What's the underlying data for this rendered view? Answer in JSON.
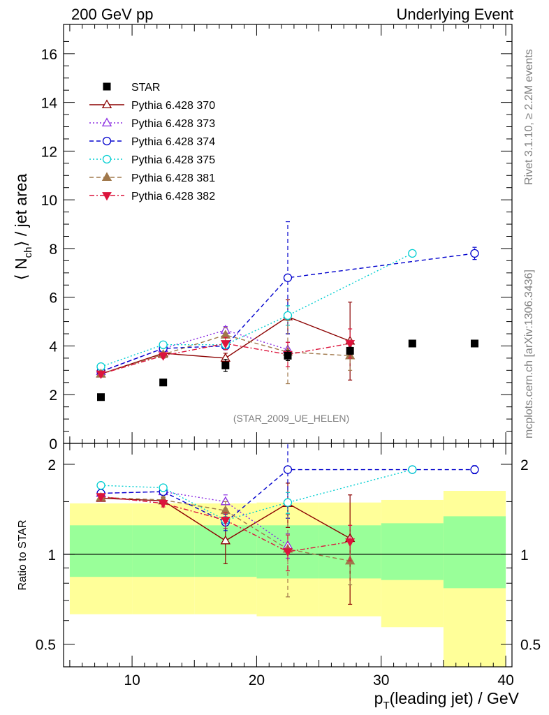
{
  "header": {
    "left": "200 GeV pp",
    "right": "Underlying Event"
  },
  "side_labels": {
    "rivet": "Rivet 3.1.10, ≥ 2.2M events",
    "mcplots": "mcplots.cern.ch [arXiv:1306.3436]"
  },
  "analysis_tag": "(STAR_2009_UE_HELEN)",
  "chart_data": [
    {
      "type": "scatter",
      "ylabel_prefix": "⟨ N",
      "ylabel_sub": "ch",
      "ylabel_suffix": "⟩ / jet area",
      "xlim": [
        4.5,
        40.5
      ],
      "ylim": [
        0,
        17.2
      ],
      "yticks": [
        0,
        2,
        4,
        6,
        8,
        10,
        12,
        14,
        16
      ],
      "legend_position": "top-left",
      "series": [
        {
          "name": "STAR",
          "marker": "square-filled",
          "color": "#000000",
          "line": "none",
          "x": [
            7.5,
            12.5,
            17.5,
            22.5,
            27.5,
            32.5,
            37.5
          ],
          "y": [
            1.9,
            2.5,
            3.2,
            3.6,
            3.8,
            4.1,
            4.1
          ],
          "yerr": [
            0.05,
            0.05,
            0.25,
            0.2,
            0.15,
            0.05,
            0.05
          ]
        },
        {
          "name": "Pythia 6.428 370",
          "marker": "triangle-open",
          "color": "#8b0000",
          "line": "solid",
          "x": [
            7.5,
            12.5,
            17.5,
            22.5,
            27.5
          ],
          "y": [
            2.85,
            3.7,
            3.5,
            5.2,
            4.2
          ],
          "yerr": [
            0.1,
            0.1,
            0.2,
            0.7,
            1.6
          ]
        },
        {
          "name": "Pythia 6.428 373",
          "marker": "triangle-open",
          "color": "#8a2be2",
          "line": "dotted",
          "x": [
            7.5,
            12.5,
            17.5,
            22.5
          ],
          "y": [
            2.95,
            3.9,
            4.65,
            3.85
          ],
          "yerr": [
            0.1,
            0.1,
            0.15,
            0.3
          ]
        },
        {
          "name": "Pythia 6.428 374",
          "marker": "circle-open",
          "color": "#0000cd",
          "line": "dashed",
          "x": [
            7.5,
            12.5,
            17.5,
            22.5,
            37.5
          ],
          "y": [
            2.95,
            3.9,
            4.0,
            6.8,
            7.8
          ],
          "yerr": [
            0.1,
            0.1,
            0.15,
            2.3,
            0.25
          ]
        },
        {
          "name": "Pythia 6.428 375",
          "marker": "circle-open",
          "color": "#00ced1",
          "line": "dotted",
          "x": [
            7.5,
            12.5,
            17.5,
            22.5,
            32.5
          ],
          "y": [
            3.15,
            4.05,
            4.05,
            5.25,
            7.8
          ],
          "yerr": [
            0.1,
            0.1,
            0.15,
            0.4,
            0.1
          ]
        },
        {
          "name": "Pythia 6.428 381",
          "marker": "triangle-filled",
          "color": "#a0784b",
          "line": "dashed",
          "x": [
            7.5,
            12.5,
            17.5,
            22.5,
            27.5
          ],
          "y": [
            2.85,
            3.65,
            4.45,
            3.75,
            3.6
          ],
          "yerr": [
            0.1,
            0.1,
            0.3,
            1.3,
            0.6
          ]
        },
        {
          "name": "Pythia 6.428 382",
          "marker": "triangle-down-filled",
          "color": "#dc143c",
          "line": "dashdot",
          "x": [
            7.5,
            12.5,
            17.5,
            22.5,
            27.5
          ],
          "y": [
            2.85,
            3.6,
            4.1,
            3.65,
            4.1
          ],
          "yerr": [
            0.1,
            0.1,
            0.25,
            0.5,
            0.6
          ]
        }
      ]
    },
    {
      "type": "scatter",
      "ylabel": "Ratio to STAR",
      "xlabel_prefix": "p",
      "xlabel_sub": "T",
      "xlabel_suffix": "(leading jet) / GeV",
      "xlim": [
        4.5,
        40.5
      ],
      "ylim": [
        0.42,
        2.35
      ],
      "yscale": "log",
      "yticks": [
        0.5,
        1,
        2
      ],
      "xticks": [
        10,
        20,
        30,
        40
      ],
      "reference_line": 1,
      "bands": [
        {
          "x0": 5,
          "x1": 10,
          "y1_low": 0.84,
          "y1_high": 1.25,
          "y2_low": 0.63,
          "y2_high": 1.48
        },
        {
          "x0": 10,
          "x1": 15,
          "y1_low": 0.84,
          "y1_high": 1.25,
          "y2_low": 0.63,
          "y2_high": 1.48
        },
        {
          "x0": 15,
          "x1": 20,
          "y1_low": 0.84,
          "y1_high": 1.25,
          "y2_low": 0.63,
          "y2_high": 1.48
        },
        {
          "x0": 20,
          "x1": 25,
          "y1_low": 0.83,
          "y1_high": 1.25,
          "y2_low": 0.62,
          "y2_high": 1.49
        },
        {
          "x0": 25,
          "x1": 30,
          "y1_low": 0.83,
          "y1_high": 1.25,
          "y2_low": 0.62,
          "y2_high": 1.49
        },
        {
          "x0": 30,
          "x1": 35,
          "y1_low": 0.82,
          "y1_high": 1.27,
          "y2_low": 0.57,
          "y2_high": 1.52
        },
        {
          "x0": 35,
          "x1": 40,
          "y1_low": 0.77,
          "y1_high": 1.34,
          "y2_low": 0.41,
          "y2_high": 1.63
        }
      ],
      "band_colors": {
        "inner": "#99ff99",
        "outer": "#ffff99"
      },
      "series": [
        {
          "name": "Pythia 6.428 370",
          "color": "#8b0000",
          "marker": "triangle-open",
          "line": "solid",
          "x": [
            7.5,
            12.5,
            17.5,
            22.5,
            27.5
          ],
          "y": [
            1.54,
            1.51,
            1.11,
            1.48,
            1.13
          ],
          "yerr": [
            0.03,
            0.04,
            0.18,
            0.25,
            0.45
          ]
        },
        {
          "name": "Pythia 6.428 373",
          "color": "#8a2be2",
          "marker": "triangle-open",
          "line": "dotted",
          "x": [
            7.5,
            12.5,
            17.5,
            22.5
          ],
          "y": [
            1.6,
            1.62,
            1.5,
            1.07
          ],
          "yerr": [
            0.03,
            0.04,
            0.08,
            0.1
          ]
        },
        {
          "name": "Pythia 6.428 374",
          "color": "#0000cd",
          "marker": "circle-open",
          "line": "dashed",
          "x": [
            7.5,
            12.5,
            17.5,
            22.5,
            32.5,
            37.5
          ],
          "y": [
            1.6,
            1.62,
            1.28,
            1.92,
            1.92,
            1.92
          ],
          "yerr": [
            0.03,
            0.04,
            0.08,
            0.6,
            0.03,
            0.06
          ]
        },
        {
          "name": "Pythia 6.428 375",
          "color": "#00ced1",
          "marker": "circle-open",
          "line": "dotted",
          "x": [
            7.5,
            12.5,
            17.5,
            22.5,
            32.5
          ],
          "y": [
            1.7,
            1.67,
            1.3,
            1.49,
            1.92
          ],
          "yerr": [
            0.03,
            0.04,
            0.08,
            0.12,
            0.03
          ]
        },
        {
          "name": "Pythia 6.428 381",
          "color": "#a0784b",
          "marker": "triangle-filled",
          "line": "dashed",
          "x": [
            7.5,
            12.5,
            17.5,
            22.5,
            27.5
          ],
          "y": [
            1.55,
            1.52,
            1.4,
            1.04,
            0.95
          ],
          "yerr": [
            0.03,
            0.04,
            0.1,
            0.32,
            0.16
          ]
        },
        {
          "name": "Pythia 6.428 382",
          "color": "#dc143c",
          "marker": "triangle-down-filled",
          "line": "dashdot",
          "x": [
            7.5,
            12.5,
            17.5,
            22.5,
            27.5
          ],
          "y": [
            1.56,
            1.48,
            1.3,
            1.02,
            1.1
          ],
          "yerr": [
            0.03,
            0.04,
            0.08,
            0.14,
            0.15
          ]
        }
      ]
    }
  ]
}
